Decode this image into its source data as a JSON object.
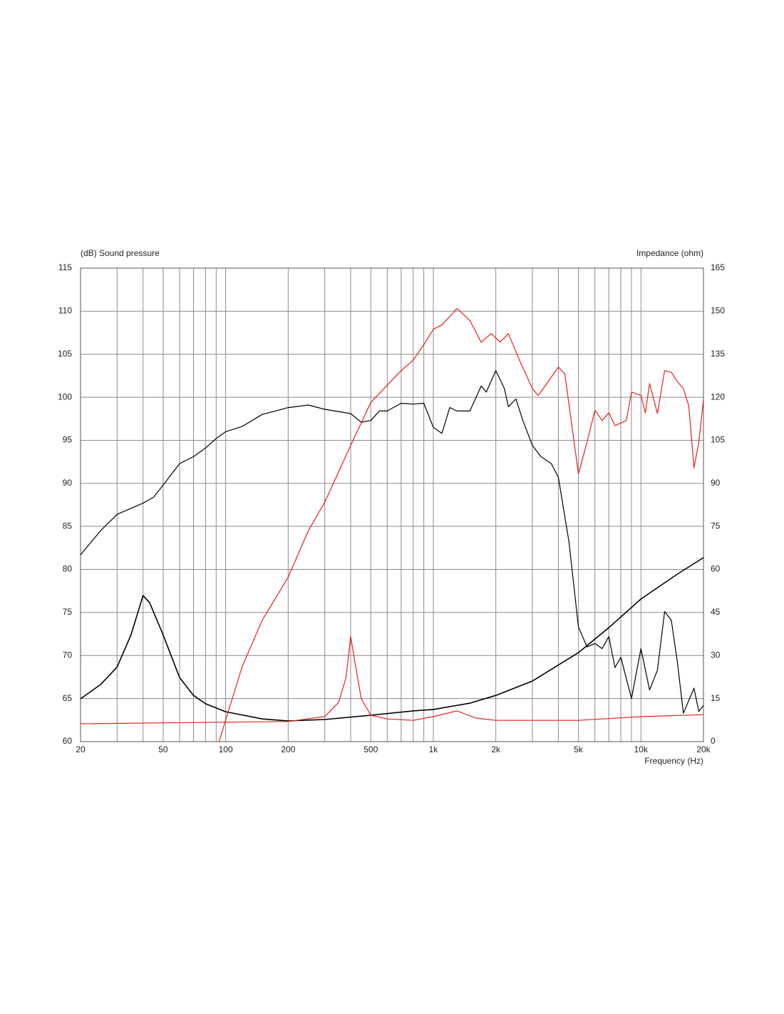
{
  "chart_data": {
    "type": "line",
    "y_label": "(dB)  Sound pressure",
    "y2_label": "Impedance  (ohm)",
    "x_label": "Frequency  (Hz)",
    "xlog": true,
    "grid": true,
    "xlim": [
      20,
      20000
    ],
    "xticks": [
      20,
      50,
      100,
      200,
      500,
      {
        "value": 1000,
        "label": "1k"
      },
      {
        "value": 2000,
        "label": "2k"
      },
      {
        "value": 5000,
        "label": "5k"
      },
      {
        "value": 10000,
        "label": "10k"
      },
      {
        "value": 20000,
        "label": "20k"
      }
    ],
    "xgrid": [
      30,
      40,
      60,
      70,
      80,
      90,
      300,
      400,
      600,
      700,
      800,
      900,
      3000,
      4000,
      6000,
      7000,
      8000,
      9000
    ],
    "ylim": [
      60,
      115
    ],
    "yticks": [
      60,
      65,
      70,
      75,
      80,
      85,
      90,
      95,
      100,
      105,
      110,
      115
    ],
    "y2lim": [
      0,
      165
    ],
    "y2ticks": [
      0,
      15,
      30,
      45,
      60,
      75,
      90,
      105,
      120,
      135,
      150,
      165
    ],
    "series": [
      {
        "color": "#000000",
        "axis": "y",
        "x": [
          20,
          25,
          30,
          40,
          45,
          50,
          60,
          70,
          80,
          90,
          100,
          120,
          150,
          200,
          250,
          300,
          400,
          450,
          500,
          550,
          600,
          700,
          800,
          900,
          1000,
          1100,
          1200,
          1300,
          1500,
          1700,
          1800,
          2000,
          2200,
          2300,
          2500,
          2700,
          3000,
          3300,
          3700,
          4000,
          4500,
          5000,
          5500,
          6000,
          6500,
          7000,
          7500,
          8000,
          9000,
          10000,
          11000,
          12000,
          13000,
          14000,
          15000,
          16000,
          18000,
          19000,
          20000
        ],
        "values": [
          81.7,
          84.5,
          86.4,
          87.7,
          88.4,
          89.8,
          92.3,
          93.1,
          94.1,
          95.2,
          96.0,
          96.6,
          98.0,
          98.8,
          99.1,
          98.6,
          98.1,
          97.1,
          97.3,
          98.4,
          98.4,
          99.3,
          99.2,
          99.3,
          96.5,
          95.8,
          98.8,
          98.4,
          98.4,
          101.3,
          100.6,
          103.1,
          101.0,
          98.9,
          99.8,
          97.3,
          94.4,
          93.1,
          92.3,
          90.7,
          83.2,
          73.3,
          71.0,
          71.4,
          70.8,
          72.2,
          68.6,
          69.8,
          65.0,
          70.8,
          66.0,
          68.3,
          75.1,
          74.1,
          69.1,
          63.3,
          66.2,
          63.5,
          64.2
        ]
      },
      {
        "color": "#000000",
        "axis": "y2",
        "x": [
          20,
          25,
          30,
          35,
          40,
          43,
          50,
          60,
          70,
          80,
          100,
          150,
          200,
          300,
          500,
          800,
          1000,
          1500,
          2000,
          3000,
          5000,
          7000,
          10000,
          15000,
          20000
        ],
        "values": [
          14.9,
          19.9,
          26.0,
          37.2,
          50.9,
          48.4,
          37.2,
          22.3,
          16.1,
          13.2,
          10.4,
          7.9,
          7.2,
          7.7,
          9.2,
          10.7,
          11.2,
          13.4,
          16.1,
          21.1,
          31.0,
          39.7,
          49.7,
          58.4,
          64.1
        ]
      },
      {
        "color": "#e8201c",
        "axis": "y",
        "x": [
          93,
          100,
          120,
          150,
          200,
          250,
          300,
          400,
          500,
          600,
          700,
          800,
          900,
          1000,
          1100,
          1300,
          1500,
          1700,
          1900,
          2100,
          2300,
          2600,
          3000,
          3200,
          3500,
          4000,
          4300,
          5000,
          5500,
          6000,
          6500,
          7000,
          7500,
          8500,
          9000,
          10000,
          10500,
          11000,
          12000,
          13000,
          14000,
          15000,
          16000,
          17000,
          18000,
          19000,
          20000
        ],
        "values": [
          60.0,
          62.5,
          68.7,
          74.1,
          79.1,
          84.5,
          87.8,
          94.4,
          99.4,
          101.4,
          103.1,
          104.3,
          106.1,
          107.9,
          108.4,
          110.3,
          108.9,
          106.4,
          107.4,
          106.4,
          107.4,
          104.3,
          101.0,
          100.2,
          101.5,
          103.5,
          102.7,
          91.1,
          94.8,
          98.5,
          97.3,
          98.2,
          96.7,
          97.3,
          100.6,
          100.2,
          98.2,
          101.6,
          98.1,
          103.1,
          102.9,
          101.8,
          101.0,
          99.0,
          91.8,
          94.8,
          99.7
        ]
      },
      {
        "color": "#e8201c",
        "axis": "y2",
        "x": [
          20,
          200,
          300,
          350,
          380,
          400,
          420,
          450,
          500,
          600,
          800,
          1000,
          1300,
          1600,
          2000,
          5000,
          10000,
          20000
        ],
        "values": [
          6.2,
          7.0,
          8.7,
          13.7,
          22.3,
          36.7,
          27.3,
          14.9,
          9.2,
          7.9,
          7.4,
          8.7,
          10.7,
          8.2,
          7.4,
          7.4,
          8.7,
          9.4
        ]
      }
    ]
  }
}
